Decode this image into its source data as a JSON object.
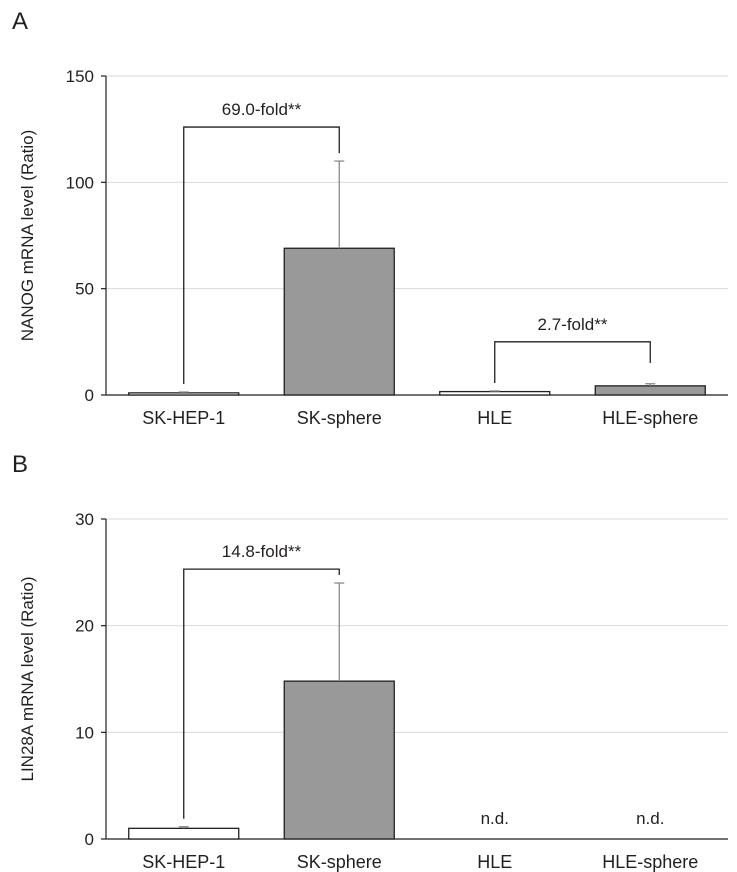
{
  "chart_data": [
    {
      "type": "bar",
      "panel": "A",
      "ylabel": "NANOG mRNA level (Ratio)",
      "ylim": [
        0,
        150
      ],
      "yticks": [
        0,
        50,
        100,
        150
      ],
      "grid": true,
      "categories": [
        "SK-HEP-1",
        "SK-sphere",
        "HLE",
        "HLE-sphere"
      ],
      "values": [
        1.0,
        69.0,
        1.6,
        4.3
      ],
      "errors": [
        0.4,
        41.0,
        0.3,
        1.0
      ],
      "colors": [
        "#ffffff",
        "#999999",
        "#ffffff",
        "#999999"
      ],
      "value_labels": [
        "",
        "",
        "",
        ""
      ],
      "brackets": [
        {
          "from": 0,
          "to": 1,
          "label": "69.0-fold**",
          "level": 126
        },
        {
          "from": 2,
          "to": 3,
          "label": "2.7-fold**",
          "level": 25
        }
      ]
    },
    {
      "type": "bar",
      "panel": "B",
      "ylabel": "LIN28A mRNA level (Ratio)",
      "ylim": [
        0,
        30
      ],
      "yticks": [
        0,
        10,
        20,
        30
      ],
      "grid": true,
      "categories": [
        "SK-HEP-1",
        "SK-sphere",
        "HLE",
        "HLE-sphere"
      ],
      "values": [
        1.0,
        14.8,
        null,
        null
      ],
      "errors": [
        0.15,
        9.2,
        null,
        null
      ],
      "colors": [
        "#ffffff",
        "#999999",
        "#ffffff",
        "#999999"
      ],
      "value_labels": [
        "",
        "",
        "n.d.",
        "n.d."
      ],
      "brackets": [
        {
          "from": 0,
          "to": 1,
          "label": "14.8-fold**",
          "level": 25.3
        }
      ]
    }
  ]
}
